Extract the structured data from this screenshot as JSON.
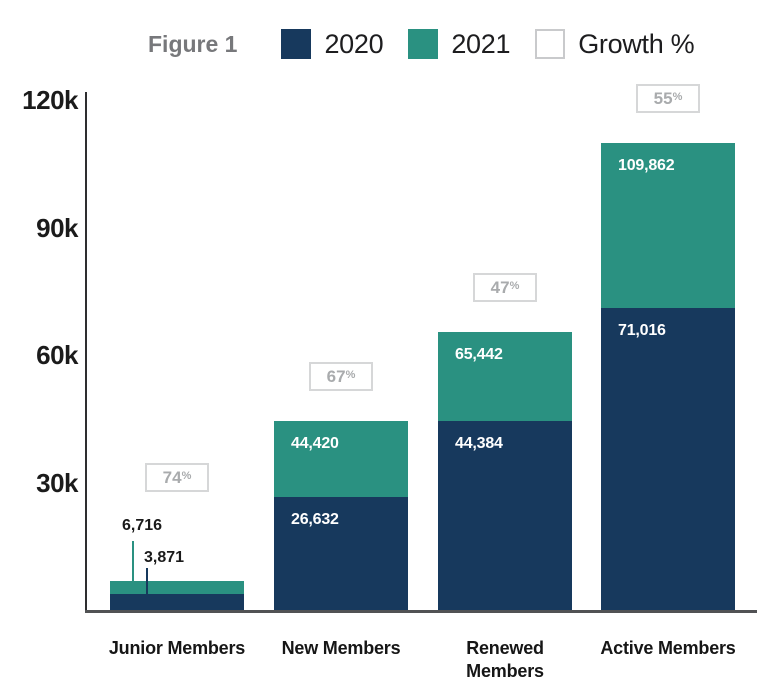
{
  "figure": {
    "label": "Figure 1"
  },
  "legend": {
    "items": [
      {
        "label": "2020",
        "swatch": "navy"
      },
      {
        "label": "2021",
        "swatch": "teal"
      },
      {
        "label": "Growth %",
        "swatch": "outline"
      }
    ]
  },
  "colors": {
    "navy_2020": "#17395d",
    "teal_2021": "#2a9181",
    "figure_label_gray": "#77787b",
    "growth_text_gray": "#a9abad",
    "growth_border_gray": "#d6d7d8",
    "axis_line": "#2e2e30",
    "baseline_gray": "#515254"
  },
  "chart_data": {
    "type": "bar",
    "variant": "overlay",
    "title": "Figure 1",
    "categories": [
      "Junior Members",
      "New Members",
      "Renewed\nMembers",
      "Active Members"
    ],
    "series": [
      {
        "name": "2020",
        "color": "#17395d",
        "values": [
          3871,
          26632,
          44384,
          71016
        ],
        "labels": [
          "3,871",
          "26,632",
          "44,384",
          "71,016"
        ]
      },
      {
        "name": "2021",
        "color": "#2a9181",
        "values": [
          6716,
          44420,
          65442,
          109862
        ],
        "labels": [
          "6,716",
          "44,420",
          "65,442",
          "109,862"
        ]
      }
    ],
    "growth_percent": [
      74,
      67,
      47,
      55
    ],
    "growth_labels": [
      "74",
      "67",
      "47",
      "55"
    ],
    "growth_suffix": "%",
    "y_ticks": [
      {
        "label": "120k",
        "value": 120000
      },
      {
        "label": "90k",
        "value": 90000
      },
      {
        "label": "60k",
        "value": 60000
      },
      {
        "label": "30k",
        "value": 30000
      }
    ],
    "ylim": [
      0,
      120000
    ],
    "legend_position": "top",
    "grid": false
  }
}
